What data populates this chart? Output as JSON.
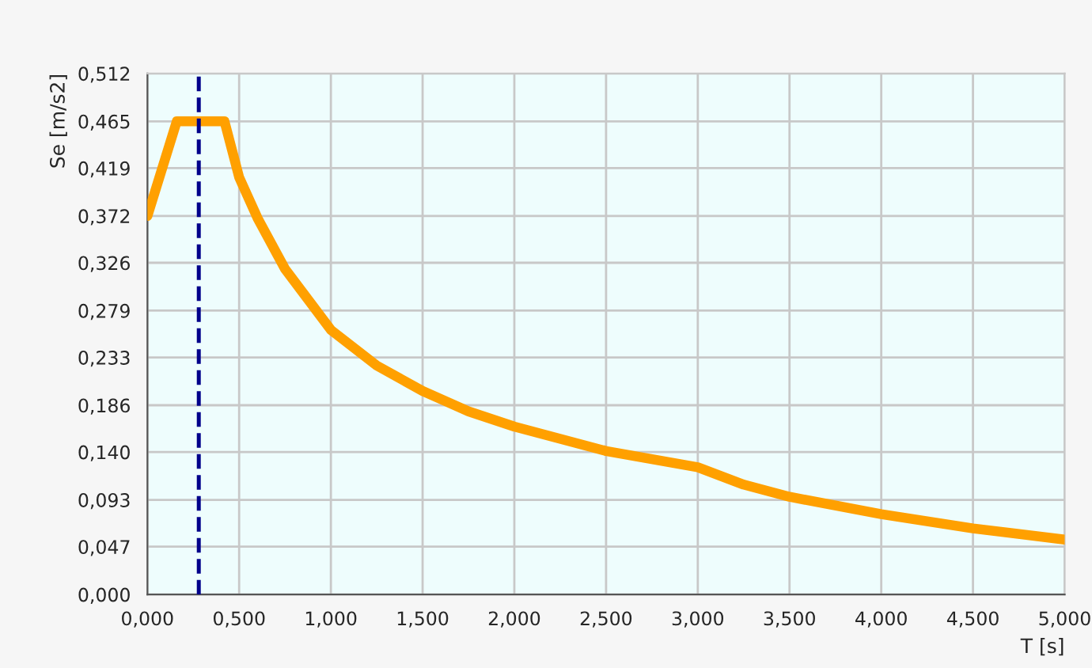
{
  "chart_data": {
    "type": "line",
    "xlabel": "T [s]",
    "ylabel": "Se [m/s2]",
    "series": [
      {
        "color": "#ffa000",
        "x": [
          0,
          0.16,
          0.42,
          0.5,
          0.6,
          0.75,
          1.0,
          1.25,
          1.5,
          1.75,
          2.0,
          2.5,
          3.0,
          3.25,
          3.5,
          4.0,
          4.5,
          5.0
        ],
        "values": [
          0.372,
          0.465,
          0.465,
          0.41,
          0.37,
          0.32,
          0.26,
          0.225,
          0.2,
          0.18,
          0.165,
          0.141,
          0.125,
          0.108,
          0.096,
          0.079,
          0.065,
          0.054
        ]
      }
    ],
    "xlim": [
      0,
      5
    ],
    "ylim": [
      0,
      0.512
    ],
    "xticks": [
      {
        "value": 0,
        "label": "0,000"
      },
      {
        "value": 0.5,
        "label": "0,500"
      },
      {
        "value": 1,
        "label": "1,000"
      },
      {
        "value": 1.5,
        "label": "1,500"
      },
      {
        "value": 2,
        "label": "2,000"
      },
      {
        "value": 2.5,
        "label": "2,500"
      },
      {
        "value": 3,
        "label": "3,000"
      },
      {
        "value": 3.5,
        "label": "3,500"
      },
      {
        "value": 4,
        "label": "4,000"
      },
      {
        "value": 4.5,
        "label": "4,500"
      },
      {
        "value": 5,
        "label": "5,000"
      }
    ],
    "yticks": [
      {
        "value": 0,
        "label": "0,000"
      },
      {
        "value": 0.047,
        "label": "0,047"
      },
      {
        "value": 0.093,
        "label": "0,093"
      },
      {
        "value": 0.14,
        "label": "0,140"
      },
      {
        "value": 0.186,
        "label": "0,186"
      },
      {
        "value": 0.233,
        "label": "0,233"
      },
      {
        "value": 0.279,
        "label": "0,279"
      },
      {
        "value": 0.326,
        "label": "0,326"
      },
      {
        "value": 0.372,
        "label": "0,372"
      },
      {
        "value": 0.419,
        "label": "0,419"
      },
      {
        "value": 0.465,
        "label": "0,465"
      },
      {
        "value": 0.512,
        "label": "0,512"
      }
    ],
    "ref_lines": [
      {
        "axis": "x",
        "value": 0.28,
        "color": "#00008b",
        "line_style": "dashed"
      }
    ],
    "grid": true,
    "marker": "none",
    "line_style": "solid"
  }
}
